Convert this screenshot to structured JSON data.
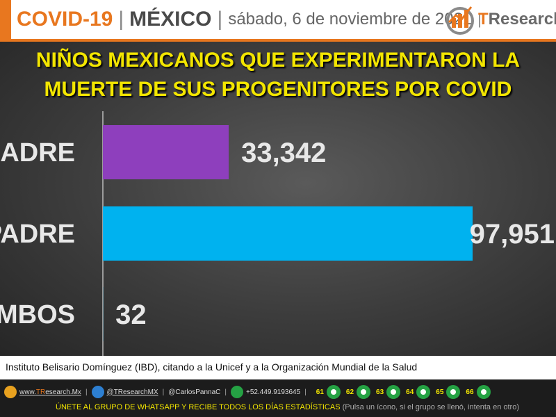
{
  "header": {
    "covid": "COVID-19",
    "sep": "|",
    "country": "MÉXICO",
    "date": "sábado, 6 de noviembre de 2021",
    "date_sep": "|",
    "logo_t": "T",
    "logo_rest": "Research"
  },
  "colors": {
    "accent": "#e8771f",
    "title_yellow": "#f3e600",
    "madre": "#8e3fbd",
    "padre": "#00b2ef"
  },
  "chart_data": {
    "type": "bar",
    "orientation": "horizontal",
    "title_line1": "NIÑOS MEXICANOS QUE EXPERIMENTARON LA",
    "title_line2": "MUERTE DE SUS PROGENITORES POR COVID",
    "categories": [
      "MADRE",
      "PADRE",
      "AMBOS"
    ],
    "values": [
      33342,
      97951,
      32
    ],
    "value_labels": [
      "33,342",
      "97,951",
      "32"
    ],
    "xlim": [
      0,
      97951
    ],
    "grid": false,
    "legend": "none"
  },
  "source": "Instituto Belisario Domínguez (IBD), citando a la Unicef y a la Organización Mundial de la Salud",
  "footer": {
    "website_prefix": "www.",
    "website_hl": "TR",
    "website_rest": "esearch.Mx",
    "twitter": "@TResearchMX",
    "twitter_alt": "@CarlosPannaC",
    "phone": "+52.449.9193645",
    "groups": [
      "61",
      "62",
      "63",
      "64",
      "65",
      "66"
    ],
    "cta": "ÚNETE AL GRUPO DE WHATSAPP Y RECIBE TODOS LOS DÍAS ESTADÍSTICAS",
    "note": "(Pulsa un ícono, si el grupo se llenó, intenta en otro)"
  }
}
